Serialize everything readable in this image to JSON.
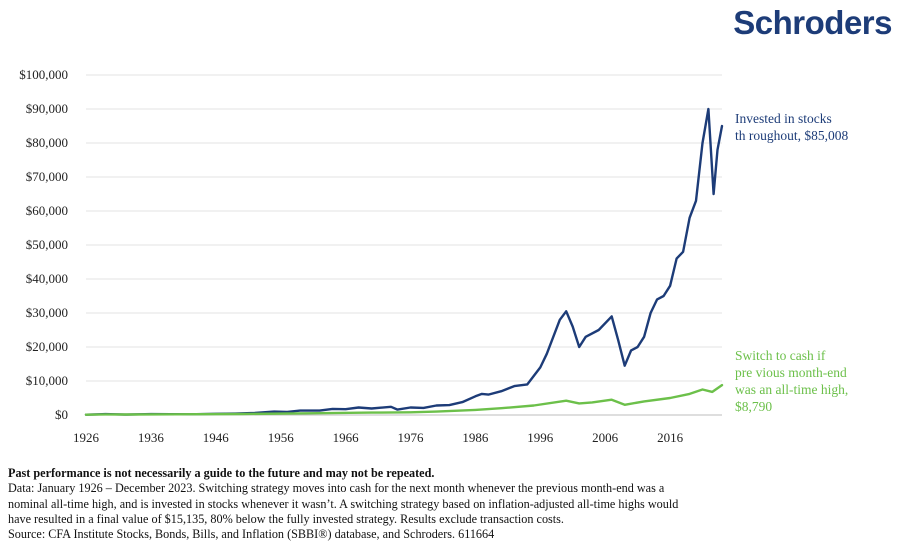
{
  "brand": {
    "name": "Schroders",
    "color": "#1d3c78"
  },
  "chart_data": {
    "type": "line",
    "x_ticks": [
      "1926",
      "1936",
      "1946",
      "1956",
      "1966",
      "1976",
      "1986",
      "1996",
      "2006",
      "2016"
    ],
    "y_ticks": [
      "$0",
      "$10,000",
      "$20,000",
      "$30,000",
      "$40,000",
      "$50,000",
      "$60,000",
      "$70,000",
      "$80,000",
      "$90,000",
      "$100,000"
    ],
    "xlim": [
      1926,
      2024
    ],
    "ylim": [
      0,
      100000
    ],
    "grid": true,
    "series": [
      {
        "name": "Invested in stocks throughout, $85,008",
        "label_lines": [
          "Invested in stocks",
          "th roughout, $85,008"
        ],
        "color": "#1d3c78",
        "points": [
          [
            1926,
            100
          ],
          [
            1928,
            200
          ],
          [
            1929,
            250
          ],
          [
            1932,
            120
          ],
          [
            1936,
            250
          ],
          [
            1942,
            200
          ],
          [
            1946,
            350
          ],
          [
            1949,
            400
          ],
          [
            1952,
            600
          ],
          [
            1955,
            1000
          ],
          [
            1957,
            900
          ],
          [
            1959,
            1300
          ],
          [
            1962,
            1300
          ],
          [
            1964,
            1800
          ],
          [
            1966,
            1700
          ],
          [
            1968,
            2200
          ],
          [
            1970,
            1900
          ],
          [
            1973,
            2400
          ],
          [
            1974,
            1600
          ],
          [
            1976,
            2200
          ],
          [
            1978,
            2100
          ],
          [
            1980,
            2800
          ],
          [
            1982,
            2900
          ],
          [
            1984,
            3800
          ],
          [
            1986,
            5500
          ],
          [
            1987,
            6200
          ],
          [
            1988,
            6000
          ],
          [
            1990,
            7000
          ],
          [
            1992,
            8500
          ],
          [
            1994,
            9000
          ],
          [
            1995,
            11500
          ],
          [
            1996,
            14000
          ],
          [
            1997,
            18000
          ],
          [
            1998,
            23000
          ],
          [
            1999,
            28000
          ],
          [
            2000,
            30500
          ],
          [
            2001,
            26000
          ],
          [
            2002,
            20000
          ],
          [
            2003,
            23000
          ],
          [
            2005,
            25000
          ],
          [
            2007,
            29000
          ],
          [
            2008,
            22000
          ],
          [
            2009,
            14500
          ],
          [
            2010,
            19000
          ],
          [
            2011,
            20000
          ],
          [
            2012,
            23000
          ],
          [
            2013,
            30000
          ],
          [
            2014,
            34000
          ],
          [
            2015,
            35000
          ],
          [
            2016,
            38000
          ],
          [
            2017,
            46000
          ],
          [
            2018,
            48000
          ],
          [
            2019,
            58000
          ],
          [
            2020,
            63000
          ],
          [
            2021,
            80000
          ],
          [
            2021.9,
            90000
          ],
          [
            2022.7,
            65000
          ],
          [
            2023.3,
            78000
          ],
          [
            2024,
            85008
          ]
        ]
      },
      {
        "name": "Switch to cash if previous month-end was an all-time high, $8,790",
        "label_lines": [
          "Switch to cash if",
          "pre vious month-end",
          "was an all-time high,",
          "$8,790"
        ],
        "color": "#6cc04a",
        "points": [
          [
            1926,
            100
          ],
          [
            1929,
            180
          ],
          [
            1932,
            150
          ],
          [
            1940,
            200
          ],
          [
            1950,
            300
          ],
          [
            1960,
            500
          ],
          [
            1970,
            700
          ],
          [
            1976,
            800
          ],
          [
            1980,
            1000
          ],
          [
            1986,
            1500
          ],
          [
            1990,
            2000
          ],
          [
            1995,
            2800
          ],
          [
            2000,
            4200
          ],
          [
            2002,
            3400
          ],
          [
            2004,
            3700
          ],
          [
            2007,
            4500
          ],
          [
            2009,
            3000
          ],
          [
            2012,
            4000
          ],
          [
            2016,
            5000
          ],
          [
            2019,
            6200
          ],
          [
            2021,
            7500
          ],
          [
            2022.5,
            6800
          ],
          [
            2024,
            8790
          ]
        ]
      }
    ]
  },
  "footnote": {
    "heading": "Past performance is not necessarily a guide to the future and may not be repeated.",
    "lines": [
      "Data: January 1926 – December 2023. Switching strategy moves into cash for the next month whenever the previous month-end was a",
      "nominal all-time high, and is invested in stocks whenever it wasn’t. A switching strategy based on inflation-adjusted all-time highs would",
      "have resulted in a final value of $15,135, 80% below the fully invested strategy. Results exclude transaction costs.",
      "Source: CFA Institute Stocks, Bonds, Bills, and Inflation (SBBI®) database, and Schroders. 611664"
    ]
  }
}
